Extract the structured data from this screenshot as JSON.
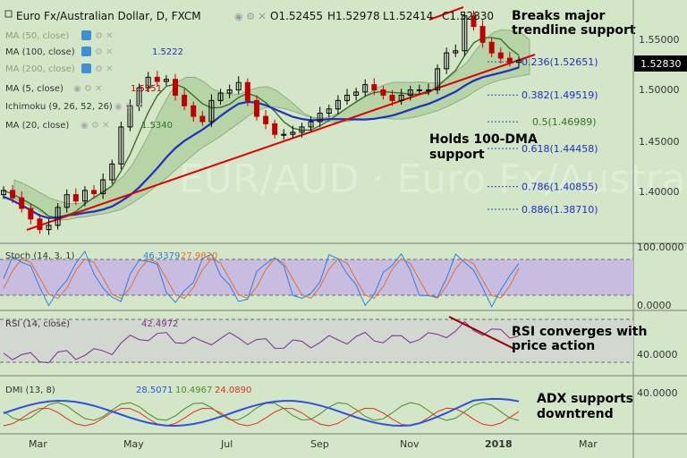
{
  "header": {
    "title": "Euro Fx/Australian Dollar, D, FXCM",
    "open": "O1.52455",
    "high": "H1.52978",
    "low": "L1.52414",
    "close": "C1.52830"
  },
  "watermark": "EUR/AUD · Euro Fx/Australian Dollar",
  "annotations": {
    "breaks": [
      "Breaks major",
      "trendline support"
    ],
    "holds": [
      "Holds 100-DMA",
      "support"
    ],
    "rsi": [
      "RSI converges with",
      "price action"
    ],
    "adx": [
      "ADX supports",
      "downtrend"
    ]
  },
  "indicators": {
    "ma50": "MA (50, close)",
    "ma100": "MA (100, close)",
    "ma100_value": "1.5222",
    "ma200": "MA (200, close)",
    "ma5": "MA (5, close)",
    "ma5_value": "1.5251",
    "ichimoku": "Ichimoku (9, 26, 52, 26)",
    "ma20": "MA (20, close)",
    "ma20_value": "1.5340",
    "stoch": "Stoch (14, 3, 1)",
    "stoch_v1": "46.3379",
    "stoch_v2": "27.9820",
    "rsi": "RSI (14, close)",
    "rsi_v": "42.4972",
    "dmi": "DMI (13, 8)",
    "dmi_v1": "28.5071",
    "dmi_v2": "10.4967",
    "dmi_v3": "24.0890"
  },
  "price_badge": "1.52830",
  "colors": {
    "background": "#d4e6c8",
    "candle_up": "#000000",
    "candle_down": "#c00000",
    "ma100": "#1f2fbf",
    "ma20": "#3a6e2a",
    "trendline": "#e00000",
    "cloud": "#9cc48a",
    "stoch_k": "#2f7fe0",
    "stoch_d": "#e07030",
    "rsi": "#7b2d8f",
    "adx": "#3050e0",
    "di_plus": "#4e8a2a",
    "di_minus": "#e03020"
  },
  "chart_data": {
    "type": "candlestick",
    "symbol": "EUR/AUD",
    "timeframe": "Daily",
    "x_ticks": [
      "Mar",
      "May",
      "Jul",
      "Sep",
      "Nov",
      "2018",
      "Mar"
    ],
    "y_ticks_price": [
      "1.55000",
      "1.50000",
      "1.45000",
      "1.40000"
    ],
    "y_ticks_stoch": [
      "100.0000",
      "0.0000"
    ],
    "y_ticks_rsi": [
      "40.0000"
    ],
    "y_ticks_dmi": [
      "40.0000"
    ],
    "ylim": [
      1.355,
      1.585
    ],
    "close_series": [
      1.405,
      1.398,
      1.388,
      1.378,
      1.368,
      1.372,
      1.389,
      1.401,
      1.395,
      1.405,
      1.402,
      1.415,
      1.43,
      1.465,
      1.485,
      1.502,
      1.512,
      1.508,
      1.51,
      1.495,
      1.485,
      1.475,
      1.47,
      1.49,
      1.497,
      1.5,
      1.507,
      1.49,
      1.475,
      1.468,
      1.458,
      1.458,
      1.46,
      1.465,
      1.47,
      1.478,
      1.482,
      1.49,
      1.495,
      1.498,
      1.505,
      1.5,
      1.495,
      1.49,
      1.495,
      1.5,
      1.5,
      1.5,
      1.52,
      1.535,
      1.537,
      1.57,
      1.56,
      1.545,
      1.535,
      1.53,
      1.526,
      1.528
    ],
    "fib_levels": [
      {
        "label": "0.236(1.52651)",
        "value": 1.52651
      },
      {
        "label": "0.382(1.49519)",
        "value": 1.49519
      },
      {
        "label": "0.5(1.46989)",
        "value": 1.46989
      },
      {
        "label": "0.618(1.44458)",
        "value": 1.44458
      },
      {
        "label": "0.786(1.40855)",
        "value": 1.40855
      },
      {
        "label": "0.886(1.38710)",
        "value": 1.3871
      }
    ],
    "last_close": 1.5283
  }
}
